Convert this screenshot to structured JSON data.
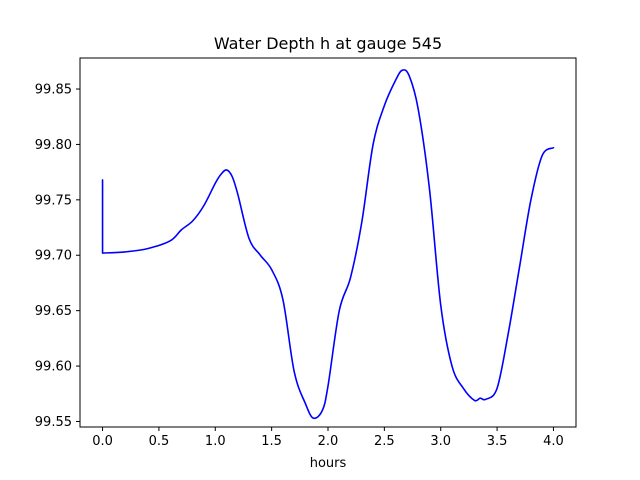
{
  "chart_data": {
    "type": "line",
    "title": "Water Depth h at gauge 545",
    "xlabel": "hours",
    "ylabel": "",
    "xlim": [
      -0.2,
      4.2
    ],
    "ylim": [
      99.545,
      99.878
    ],
    "xticks": [
      0.0,
      0.5,
      1.0,
      1.5,
      2.0,
      2.5,
      3.0,
      3.5,
      4.0
    ],
    "xtick_labels": [
      "0.0",
      "0.5",
      "1.0",
      "1.5",
      "2.0",
      "2.5",
      "3.0",
      "3.5",
      "4.0"
    ],
    "yticks": [
      99.55,
      99.6,
      99.65,
      99.7,
      99.75,
      99.8,
      99.85
    ],
    "ytick_labels": [
      "99.55",
      "99.60",
      "99.65",
      "99.70",
      "99.75",
      "99.80",
      "99.85"
    ],
    "grid": false,
    "legend": "none",
    "series": [
      {
        "color": "#0000ff",
        "x": [
          0.0,
          0.0,
          0.2,
          0.4,
          0.6,
          0.7,
          0.8,
          0.9,
          1.0,
          1.05,
          1.1,
          1.15,
          1.2,
          1.3,
          1.4,
          1.5,
          1.6,
          1.7,
          1.8,
          1.87,
          1.95,
          2.0,
          2.1,
          2.2,
          2.3,
          2.4,
          2.5,
          2.6,
          2.66,
          2.72,
          2.8,
          2.9,
          3.0,
          3.1,
          3.2,
          3.3,
          3.35,
          3.4,
          3.5,
          3.6,
          3.7,
          3.8,
          3.9,
          4.0
        ],
        "y": [
          99.768,
          99.702,
          99.703,
          99.706,
          99.713,
          99.723,
          99.731,
          99.745,
          99.765,
          99.773,
          99.777,
          99.771,
          99.755,
          99.715,
          99.7,
          99.687,
          99.66,
          99.595,
          99.566,
          99.553,
          99.56,
          99.582,
          99.65,
          99.68,
          99.73,
          99.8,
          99.835,
          99.858,
          99.867,
          99.862,
          99.832,
          99.76,
          99.655,
          99.6,
          99.58,
          99.569,
          99.571,
          99.57,
          99.58,
          99.63,
          99.69,
          99.75,
          99.79,
          99.797
        ]
      }
    ]
  }
}
